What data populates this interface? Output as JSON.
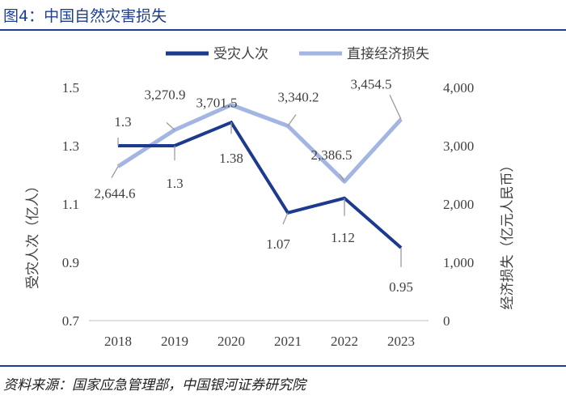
{
  "header": {
    "figure_title": "图4：中国自然灾害损失"
  },
  "footer": {
    "source": "资料来源：国家应急管理部，中国银河证券研究院"
  },
  "colors": {
    "series1": "#1c3a8f",
    "series2": "#a3b5e3",
    "leader": "#9a9a9a",
    "axis": "#bfbfbf",
    "title": "#1e3f8f",
    "text": "#404040"
  },
  "chart_data": {
    "type": "line",
    "categories": [
      "2018",
      "2019",
      "2020",
      "2021",
      "2022",
      "2023"
    ],
    "series": [
      {
        "name": "受灾人次",
        "axis": "left",
        "values": [
          1.3,
          1.3,
          1.38,
          1.07,
          1.12,
          0.95
        ],
        "labels": [
          "1.3",
          "1.3",
          "1.38",
          "1.07",
          "1.12",
          "0.95"
        ]
      },
      {
        "name": "直接经济损失",
        "axis": "right",
        "values": [
          2644.6,
          3270.9,
          3701.5,
          3340.2,
          2386.5,
          3454.5
        ],
        "labels": [
          "2,644.6",
          "3,270.9",
          "3,701.5",
          "3,340.2",
          "2,386.5",
          "3,454.5"
        ]
      }
    ],
    "y_left": {
      "label": "受灾人次（亿人）",
      "range": [
        0.7,
        1.5
      ],
      "ticks": [
        "0.7",
        "0.9",
        "1.1",
        "1.3",
        "1.5"
      ]
    },
    "y_right": {
      "label": "经济损失（亿元人民币）",
      "range": [
        0,
        4000
      ],
      "ticks": [
        "0",
        "1,000",
        "2,000",
        "3,000",
        "4,000"
      ]
    },
    "legend": {
      "position": "top-right"
    },
    "grid": false
  }
}
